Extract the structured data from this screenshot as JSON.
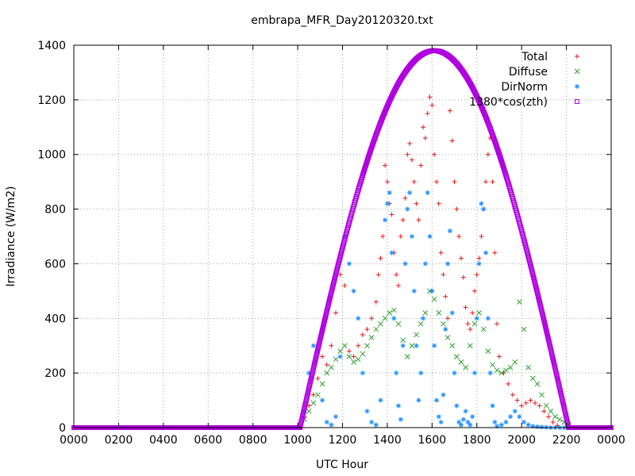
{
  "chart_data": {
    "type": "scatter",
    "title": "embrapa_MFR_Day20120320.txt",
    "xlabel": "UTC Hour",
    "ylabel": "Irradiance (W/m2)",
    "xlim": [
      0,
      24
    ],
    "ylim": [
      0,
      1400
    ],
    "x_tick_labels": [
      "0000",
      "0200",
      "0400",
      "0600",
      "0800",
      "1000",
      "1200",
      "1400",
      "1600",
      "1800",
      "2000",
      "2200",
      "0000"
    ],
    "y_ticks": [
      0,
      200,
      400,
      600,
      800,
      1000,
      1200,
      1400
    ],
    "grid": true,
    "legend": "top-right",
    "series": [
      {
        "name": "Total",
        "marker": "+",
        "color": "#e41a1c",
        "points": [
          [
            10.3,
            40
          ],
          [
            10.5,
            80
          ],
          [
            10.7,
            120
          ],
          [
            10.9,
            180
          ],
          [
            11.1,
            260
          ],
          [
            11.3,
            230
          ],
          [
            11.5,
            300
          ],
          [
            11.7,
            420
          ],
          [
            11.9,
            560
          ],
          [
            12.1,
            520
          ],
          [
            12.3,
            280
          ],
          [
            12.5,
            260
          ],
          [
            12.7,
            300
          ],
          [
            12.9,
            340
          ],
          [
            13.1,
            360
          ],
          [
            13.3,
            400
          ],
          [
            13.5,
            460
          ],
          [
            13.6,
            560
          ],
          [
            13.7,
            620
          ],
          [
            13.8,
            700
          ],
          [
            13.9,
            960
          ],
          [
            14.0,
            900
          ],
          [
            14.1,
            820
          ],
          [
            14.2,
            780
          ],
          [
            14.3,
            640
          ],
          [
            14.4,
            560
          ],
          [
            14.5,
            520
          ],
          [
            14.6,
            700
          ],
          [
            14.7,
            760
          ],
          [
            14.8,
            840
          ],
          [
            14.9,
            1000
          ],
          [
            15.0,
            1040
          ],
          [
            15.1,
            980
          ],
          [
            15.2,
            900
          ],
          [
            15.3,
            820
          ],
          [
            15.4,
            760
          ],
          [
            15.5,
            960
          ],
          [
            15.6,
            1100
          ],
          [
            15.7,
            1060
          ],
          [
            15.8,
            1150
          ],
          [
            15.9,
            1210
          ],
          [
            16.0,
            1180
          ],
          [
            16.1,
            1000
          ],
          [
            16.2,
            900
          ],
          [
            16.3,
            820
          ],
          [
            16.4,
            640
          ],
          [
            16.5,
            560
          ],
          [
            16.6,
            480
          ],
          [
            16.7,
            400
          ],
          [
            16.8,
            1160
          ],
          [
            16.9,
            1050
          ],
          [
            17.0,
            900
          ],
          [
            17.1,
            800
          ],
          [
            17.2,
            700
          ],
          [
            17.3,
            620
          ],
          [
            17.4,
            550
          ],
          [
            17.5,
            440
          ],
          [
            17.6,
            380
          ],
          [
            17.7,
            360
          ],
          [
            17.8,
            420
          ],
          [
            17.9,
            500
          ],
          [
            18.0,
            560
          ],
          [
            18.1,
            620
          ],
          [
            18.2,
            700
          ],
          [
            18.3,
            800
          ],
          [
            18.4,
            900
          ],
          [
            18.5,
            1000
          ],
          [
            18.6,
            1060
          ],
          [
            18.7,
            900
          ],
          [
            18.8,
            640
          ],
          [
            18.9,
            380
          ],
          [
            19.0,
            260
          ],
          [
            19.2,
            200
          ],
          [
            19.4,
            160
          ],
          [
            19.6,
            120
          ],
          [
            19.8,
            100
          ],
          [
            20.0,
            80
          ],
          [
            20.2,
            90
          ],
          [
            20.4,
            100
          ],
          [
            20.6,
            90
          ],
          [
            20.8,
            80
          ],
          [
            21.0,
            60
          ],
          [
            21.2,
            40
          ],
          [
            21.4,
            20
          ],
          [
            21.6,
            8
          ]
        ]
      },
      {
        "name": "Diffuse",
        "marker": "x",
        "color": "#2ca02c",
        "points": [
          [
            10.3,
            30
          ],
          [
            10.5,
            60
          ],
          [
            10.7,
            90
          ],
          [
            10.9,
            120
          ],
          [
            11.1,
            160
          ],
          [
            11.3,
            200
          ],
          [
            11.5,
            220
          ],
          [
            11.7,
            250
          ],
          [
            11.9,
            280
          ],
          [
            12.1,
            300
          ],
          [
            12.3,
            260
          ],
          [
            12.5,
            240
          ],
          [
            12.7,
            250
          ],
          [
            12.9,
            270
          ],
          [
            13.1,
            300
          ],
          [
            13.3,
            330
          ],
          [
            13.5,
            360
          ],
          [
            13.7,
            380
          ],
          [
            13.9,
            400
          ],
          [
            14.1,
            420
          ],
          [
            14.3,
            430
          ],
          [
            14.5,
            380
          ],
          [
            14.7,
            320
          ],
          [
            14.9,
            260
          ],
          [
            15.1,
            300
          ],
          [
            15.3,
            340
          ],
          [
            15.5,
            380
          ],
          [
            15.7,
            420
          ],
          [
            15.9,
            500
          ],
          [
            16.1,
            470
          ],
          [
            16.3,
            420
          ],
          [
            16.5,
            380
          ],
          [
            16.7,
            330
          ],
          [
            16.9,
            300
          ],
          [
            17.1,
            260
          ],
          [
            17.3,
            240
          ],
          [
            17.5,
            220
          ],
          [
            17.7,
            300
          ],
          [
            17.9,
            380
          ],
          [
            18.1,
            420
          ],
          [
            18.3,
            360
          ],
          [
            18.5,
            280
          ],
          [
            18.7,
            230
          ],
          [
            18.9,
            210
          ],
          [
            19.1,
            200
          ],
          [
            19.3,
            210
          ],
          [
            19.5,
            220
          ],
          [
            19.7,
            240
          ],
          [
            19.9,
            460
          ],
          [
            20.1,
            360
          ],
          [
            20.3,
            220
          ],
          [
            20.5,
            180
          ],
          [
            20.7,
            160
          ],
          [
            20.9,
            120
          ],
          [
            21.1,
            80
          ],
          [
            21.3,
            60
          ],
          [
            21.5,
            40
          ],
          [
            21.7,
            30
          ],
          [
            21.9,
            20
          ],
          [
            22.1,
            10
          ]
        ]
      },
      {
        "name": "DirNorm",
        "marker": "*",
        "color": "#1e90ff",
        "points": [
          [
            10.3,
            60
          ],
          [
            10.5,
            200
          ],
          [
            10.7,
            300
          ],
          [
            10.9,
            280
          ],
          [
            11.1,
            100
          ],
          [
            11.3,
            20
          ],
          [
            11.5,
            10
          ],
          [
            11.7,
            40
          ],
          [
            11.9,
            260
          ],
          [
            12.1,
            700
          ],
          [
            12.3,
            600
          ],
          [
            12.5,
            500
          ],
          [
            12.7,
            400
          ],
          [
            12.9,
            200
          ],
          [
            13.1,
            60
          ],
          [
            13.3,
            20
          ],
          [
            13.5,
            10
          ],
          [
            13.7,
            100
          ],
          [
            13.9,
            760
          ],
          [
            14.0,
            820
          ],
          [
            14.1,
            860
          ],
          [
            14.2,
            640
          ],
          [
            14.3,
            400
          ],
          [
            14.4,
            200
          ],
          [
            14.5,
            80
          ],
          [
            14.6,
            30
          ],
          [
            14.7,
            300
          ],
          [
            14.8,
            600
          ],
          [
            14.9,
            800
          ],
          [
            15.0,
            860
          ],
          [
            15.1,
            700
          ],
          [
            15.2,
            500
          ],
          [
            15.3,
            300
          ],
          [
            15.4,
            100
          ],
          [
            15.5,
            200
          ],
          [
            15.6,
            400
          ],
          [
            15.7,
            600
          ],
          [
            15.8,
            860
          ],
          [
            15.9,
            700
          ],
          [
            16.0,
            500
          ],
          [
            16.1,
            300
          ],
          [
            16.2,
            100
          ],
          [
            16.3,
            40
          ],
          [
            16.4,
            20
          ],
          [
            16.5,
            120
          ],
          [
            16.6,
            360
          ],
          [
            16.7,
            600
          ],
          [
            16.8,
            720
          ],
          [
            16.9,
            420
          ],
          [
            17.0,
            200
          ],
          [
            17.1,
            80
          ],
          [
            17.2,
            20
          ],
          [
            17.3,
            10
          ],
          [
            17.4,
            30
          ],
          [
            17.5,
            60
          ],
          [
            17.6,
            20
          ],
          [
            17.7,
            10
          ],
          [
            17.8,
            40
          ],
          [
            17.9,
            200
          ],
          [
            18.0,
            400
          ],
          [
            18.1,
            600
          ],
          [
            18.2,
            820
          ],
          [
            18.3,
            800
          ],
          [
            18.4,
            640
          ],
          [
            18.5,
            400
          ],
          [
            18.6,
            200
          ],
          [
            18.7,
            80
          ],
          [
            18.8,
            20
          ],
          [
            18.9,
            5
          ],
          [
            19.1,
            10
          ],
          [
            19.3,
            20
          ],
          [
            19.5,
            40
          ],
          [
            19.7,
            60
          ],
          [
            19.9,
            40
          ],
          [
            20.1,
            20
          ],
          [
            20.3,
            10
          ],
          [
            20.5,
            5
          ],
          [
            20.7,
            3
          ],
          [
            20.9,
            2
          ],
          [
            21.1,
            1
          ],
          [
            21.3,
            0
          ],
          [
            21.5,
            0
          ],
          [
            21.7,
            0
          ],
          [
            21.9,
            0
          ],
          [
            22.1,
            0
          ]
        ]
      },
      {
        "name": "1380*cos(zth)",
        "marker": "square",
        "color": "#b000e0",
        "amplitude": 1380,
        "peak_hour": 16.1,
        "zero_hours": [
          10.1,
          22.1
        ]
      }
    ]
  }
}
